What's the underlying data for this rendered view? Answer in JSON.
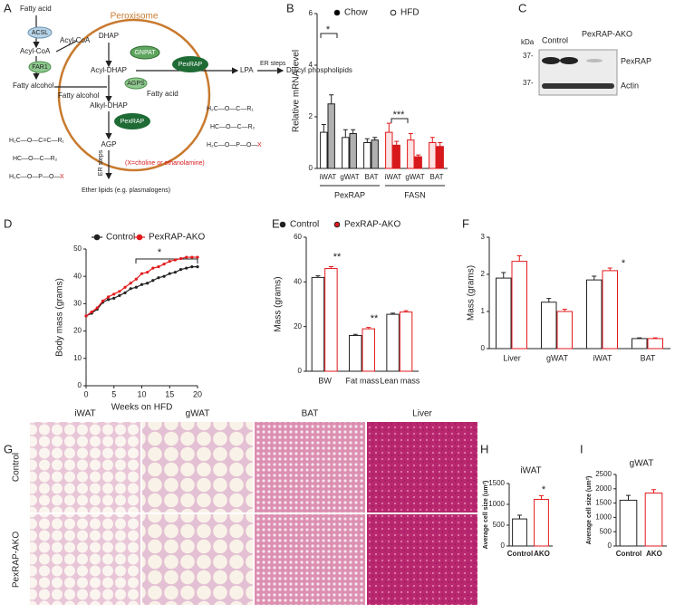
{
  "panel_labels": [
    "A",
    "B",
    "C",
    "D",
    "E",
    "F",
    "G",
    "H",
    "I"
  ],
  "diagram": {
    "title": "Peroxisome",
    "nodes": [
      "Fatty acid",
      "ACSL",
      "Acyl-CoA",
      "FAR1",
      "Fatty alcohol",
      "DHAP",
      "Acyl-CoA",
      "GNPAT",
      "Acyl-DHAP",
      "PexRAP",
      "LPA",
      "ER steps",
      "Diacyl phospholipids",
      "AGPS",
      "Fatty alcohol",
      "Fatty acid",
      "Alkyl-DHAP",
      "PexRAP",
      "AGP",
      "ER steps",
      "(X=choline or ethanolamine)",
      "Ether lipids (e.g. plasmalogens)"
    ],
    "ether_structure": [
      "H₂C—O—C=C—R₁",
      "HC—O—C—R₂",
      "H₂C—O—P—O—",
      "X"
    ],
    "diacyl_structure": [
      "H₂C—O—C—R₁",
      "HC—O—C—R₂",
      "H₂C—O—P—O—",
      "X"
    ]
  },
  "blot": {
    "kda_label": "kDa",
    "markers": [
      "37-",
      "37-"
    ],
    "lanes": [
      "Control",
      "PexRAP-AKO"
    ],
    "bands": [
      "PexRAP",
      "Actin"
    ]
  },
  "histology": {
    "columns": [
      "iWAT",
      "gWAT",
      "BAT",
      "Liver"
    ],
    "rows": [
      "Control",
      "PexRAP-AKO"
    ]
  },
  "chart_data": [
    {
      "type": "bar",
      "ylabel": "Relative mRNA level",
      "categories": [
        "iWAT",
        "gWAT",
        "BAT",
        "iWAT",
        "gWAT",
        "BAT"
      ],
      "groups": [
        "PexRAP",
        "FASN"
      ],
      "series": [
        {
          "name": "Chow",
          "marker": "#000000",
          "colors": [
            "#ffffff",
            "#ffffff",
            "#ffffff",
            "#fbe3e3",
            "#fbe3e3",
            "#fbe3e3"
          ],
          "edges": [
            "#222222",
            "#222222",
            "#222222",
            "#e31a1c",
            "#e31a1c",
            "#e31a1c"
          ],
          "values": [
            1.4,
            1.2,
            1.0,
            1.4,
            1.1,
            1.0
          ],
          "errors": [
            0.3,
            0.3,
            0.15,
            0.35,
            0.25,
            0.2
          ]
        },
        {
          "name": "HFD",
          "marker": "#ffffff",
          "colors": [
            "#b0b0b0",
            "#b0b0b0",
            "#b0b0b0",
            "#d7191c",
            "#d7191c",
            "#d7191c"
          ],
          "edges": [
            "#222222",
            "#222222",
            "#222222",
            "#d7191c",
            "#d7191c",
            "#d7191c"
          ],
          "values": [
            2.5,
            1.35,
            1.1,
            0.9,
            0.45,
            0.85
          ],
          "errors": [
            0.35,
            0.15,
            0.1,
            0.15,
            0.07,
            0.15
          ]
        }
      ],
      "ylim": [
        0,
        6
      ],
      "yticks": [
        0,
        2,
        4,
        6
      ],
      "annotations": [
        "*",
        "***"
      ]
    },
    {
      "type": "line",
      "xlabel": "Weeks on HFD",
      "ylabel": "Body mass (grams)",
      "x": [
        0,
        1,
        2,
        3,
        4,
        5,
        6,
        7,
        8,
        9,
        10,
        11,
        12,
        13,
        14,
        15,
        16,
        17,
        18,
        19,
        20
      ],
      "series": [
        {
          "name": "Control",
          "color": "#222222",
          "values": [
            25.5,
            26.5,
            28,
            30.5,
            31.5,
            32,
            33,
            34,
            35.5,
            36,
            37,
            37.5,
            38.5,
            39.5,
            40,
            41,
            41.5,
            42.5,
            43,
            43.5,
            43.5
          ]
        },
        {
          "name": "PexRAP-AKO",
          "color": "#e31a1c",
          "values": [
            25.5,
            27,
            28.5,
            31,
            32.5,
            33.5,
            34.5,
            36,
            37.5,
            39,
            41,
            41.5,
            43,
            43.5,
            44.5,
            45.5,
            46,
            46.5,
            47,
            47,
            47
          ]
        }
      ],
      "xlim": [
        0,
        20
      ],
      "xticks": [
        0,
        5,
        10,
        15,
        20
      ],
      "ylim": [
        0,
        50
      ],
      "yticks": [
        0,
        10,
        20,
        30,
        40,
        50
      ],
      "annotations": [
        "*"
      ]
    },
    {
      "type": "bar",
      "ylabel": "Mass (grams)",
      "categories": [
        "BW",
        "Fat mass",
        "Lean mass"
      ],
      "series": [
        {
          "name": "Control",
          "color": "#ffffff",
          "edge": "#222222",
          "values": [
            42,
            16,
            25.5
          ],
          "errors": [
            0.7,
            0.5,
            0.5
          ]
        },
        {
          "name": "PexRAP-AKO",
          "color": "#ffffff",
          "edge": "#e31a1c",
          "values": [
            46,
            19,
            26.5
          ],
          "errors": [
            0.8,
            0.6,
            0.6
          ]
        }
      ],
      "ylim": [
        0,
        60
      ],
      "yticks": [
        0,
        20,
        40,
        60
      ],
      "annotations": [
        "**",
        "**"
      ]
    },
    {
      "type": "bar",
      "ylabel": "Mass (grams)",
      "categories": [
        "Liver",
        "gWAT",
        "iWAT",
        "BAT"
      ],
      "series": [
        {
          "name": "Control",
          "color": "#ffffff",
          "edge": "#222222",
          "values": [
            1.9,
            1.25,
            1.85,
            0.27
          ],
          "errors": [
            0.15,
            0.1,
            0.1,
            0.02
          ]
        },
        {
          "name": "PexRAP-AKO",
          "color": "#ffffff",
          "edge": "#e31a1c",
          "values": [
            2.35,
            1.0,
            2.1,
            0.27
          ],
          "errors": [
            0.15,
            0.06,
            0.07,
            0.02
          ]
        }
      ],
      "ylim": [
        0,
        3
      ],
      "yticks": [
        0,
        1,
        2,
        3
      ],
      "annotations": [
        "*"
      ]
    },
    {
      "type": "bar",
      "title": "iWAT",
      "ylabel": "Average cell size (um²)",
      "categories": [
        "Control",
        "AKO"
      ],
      "series": [
        {
          "colors": [
            "#ffffff",
            "#ffffff"
          ],
          "edges": [
            "#222222",
            "#e31a1c"
          ],
          "values": [
            650,
            1120
          ],
          "errors": [
            90,
            90
          ]
        }
      ],
      "ylim": [
        0,
        1500
      ],
      "yticks": [
        0,
        500,
        1000,
        1500
      ],
      "annotations": [
        "*"
      ]
    },
    {
      "type": "bar",
      "title": "gWAT",
      "ylabel": "Average cell size (um²)",
      "categories": [
        "Control",
        "AKO"
      ],
      "series": [
        {
          "colors": [
            "#ffffff",
            "#ffffff"
          ],
          "edges": [
            "#222222",
            "#e31a1c"
          ],
          "values": [
            1600,
            1850
          ],
          "errors": [
            170,
            120
          ]
        }
      ],
      "ylim": [
        0,
        2500
      ],
      "yticks": [
        0,
        500,
        1000,
        1500,
        2000,
        2500
      ],
      "annotations": []
    }
  ]
}
